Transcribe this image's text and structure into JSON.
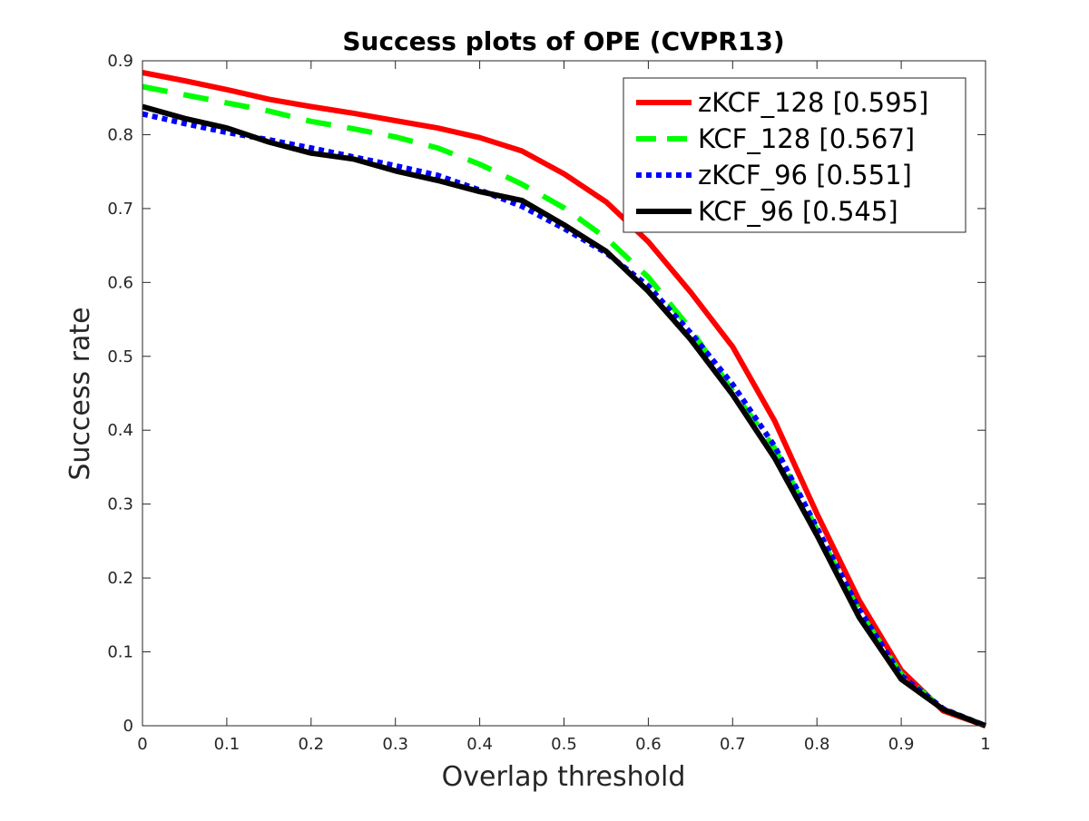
{
  "chart_data": {
    "type": "line",
    "title": "Success plots of OPE (CVPR13)",
    "xlabel": "Overlap threshold",
    "ylabel": "Success rate",
    "xlim": [
      0,
      1
    ],
    "ylim": [
      0,
      0.9
    ],
    "xticks": [
      0,
      0.1,
      0.2,
      0.3,
      0.4,
      0.5,
      0.6,
      0.7,
      0.8,
      0.9,
      1
    ],
    "xtick_labels": [
      "0",
      "0.1",
      "0.2",
      "0.3",
      "0.4",
      "0.5",
      "0.6",
      "0.7",
      "0.8",
      "0.9",
      "1"
    ],
    "yticks": [
      0,
      0.1,
      0.2,
      0.3,
      0.4,
      0.5,
      0.6,
      0.7,
      0.8,
      0.9
    ],
    "ytick_labels": [
      "0",
      "0.1",
      "0.2",
      "0.3",
      "0.4",
      "0.5",
      "0.6",
      "0.7",
      "0.8",
      "0.9"
    ],
    "grid": false,
    "legend_position": "top-right",
    "x": [
      0,
      0.05,
      0.1,
      0.15,
      0.2,
      0.25,
      0.3,
      0.35,
      0.4,
      0.45,
      0.5,
      0.55,
      0.6,
      0.65,
      0.7,
      0.75,
      0.8,
      0.85,
      0.9,
      0.95,
      1
    ],
    "series": [
      {
        "name": "zKCF_128 [0.595]",
        "color": "#ff0000",
        "line_style": "solid",
        "values": [
          0.884,
          0.873,
          0.861,
          0.848,
          0.838,
          0.829,
          0.819,
          0.809,
          0.796,
          0.778,
          0.747,
          0.709,
          0.655,
          0.587,
          0.513,
          0.412,
          0.287,
          0.17,
          0.075,
          0.02,
          0.0
        ]
      },
      {
        "name": "KCF_128 [0.567]",
        "color": "#00ff00",
        "line_style": "dashed",
        "values": [
          0.865,
          0.854,
          0.843,
          0.832,
          0.818,
          0.808,
          0.797,
          0.782,
          0.76,
          0.733,
          0.701,
          0.66,
          0.607,
          0.537,
          0.453,
          0.375,
          0.265,
          0.155,
          0.07,
          0.022,
          0.0
        ]
      },
      {
        "name": "zKCF_96 [0.551]",
        "color": "#0000ff",
        "line_style": "dotted",
        "values": [
          0.828,
          0.815,
          0.803,
          0.793,
          0.782,
          0.77,
          0.758,
          0.745,
          0.725,
          0.703,
          0.673,
          0.64,
          0.595,
          0.532,
          0.462,
          0.378,
          0.268,
          0.158,
          0.068,
          0.023,
          0.0
        ]
      },
      {
        "name": "KCF_96 [0.545]",
        "color": "#000000",
        "line_style": "solid",
        "values": [
          0.838,
          0.822,
          0.809,
          0.79,
          0.775,
          0.767,
          0.751,
          0.738,
          0.723,
          0.711,
          0.678,
          0.642,
          0.588,
          0.523,
          0.448,
          0.362,
          0.258,
          0.147,
          0.063,
          0.022,
          0.0
        ]
      }
    ]
  }
}
